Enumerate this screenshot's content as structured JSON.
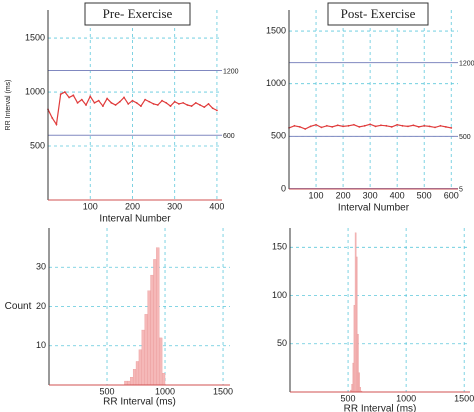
{
  "chart_data": [
    {
      "type": "line",
      "title": "Pre- Exercise",
      "x_label": "Interval Number",
      "y_label": "RR Interval (ms)",
      "x": [
        0,
        10,
        20,
        30,
        40,
        50,
        60,
        70,
        80,
        90,
        100,
        110,
        120,
        130,
        140,
        150,
        160,
        170,
        180,
        190,
        200,
        210,
        220,
        230,
        240,
        250,
        260,
        270,
        280,
        290,
        300,
        310,
        320,
        330,
        340,
        350,
        360,
        370,
        380,
        390,
        400
      ],
      "values": [
        840,
        760,
        700,
        980,
        1000,
        950,
        970,
        900,
        930,
        880,
        960,
        900,
        920,
        870,
        940,
        900,
        880,
        910,
        950,
        890,
        920,
        900,
        870,
        930,
        910,
        890,
        880,
        920,
        900,
        870,
        910,
        890,
        900,
        880,
        870,
        900,
        880,
        860,
        890,
        850,
        830
      ],
      "color": "#e03c3c",
      "xlim": [
        0,
        412
      ],
      "ylim": [
        0,
        1760
      ],
      "xticks": [
        100,
        200,
        300,
        400
      ],
      "yticks": [
        500,
        1000,
        1500
      ],
      "reference_lines": [
        {
          "value": 1200,
          "label": "1200"
        },
        {
          "value": 600,
          "label": "600"
        }
      ],
      "grid": true
    },
    {
      "type": "line",
      "title": "Post- Exercise",
      "x_label": "Interval Number",
      "x": [
        0,
        20,
        40,
        60,
        80,
        100,
        120,
        140,
        160,
        180,
        200,
        220,
        240,
        260,
        280,
        300,
        320,
        340,
        360,
        380,
        400,
        420,
        440,
        460,
        480,
        500,
        520,
        540,
        560,
        580,
        600
      ],
      "values": [
        580,
        600,
        590,
        570,
        595,
        610,
        585,
        600,
        590,
        605,
        595,
        600,
        610,
        590,
        600,
        615,
        595,
        605,
        600,
        590,
        610,
        600,
        595,
        605,
        590,
        600,
        595,
        585,
        600,
        590,
        580
      ],
      "color": "#e03c3c",
      "xlim": [
        0,
        625
      ],
      "ylim": [
        0,
        1700
      ],
      "xticks": [
        100,
        200,
        300,
        400,
        500,
        600
      ],
      "yticks": [
        0,
        500,
        1000,
        1500
      ],
      "reference_lines": [
        {
          "value": 1200,
          "label": "1200"
        },
        {
          "value": 500,
          "label": "500"
        },
        {
          "value": 5,
          "label": "5"
        }
      ],
      "grid": true
    },
    {
      "type": "histogram",
      "x_label": "RR Interval (ms)",
      "y_label": "Count",
      "bins": [
        650,
        675,
        700,
        725,
        750,
        775,
        800,
        825,
        850,
        875,
        900,
        925,
        950,
        975,
        1000
      ],
      "values": [
        1,
        1,
        2,
        4,
        6,
        9,
        14,
        18,
        24,
        28,
        32,
        35,
        12,
        3
      ],
      "color": "#f5b8b8",
      "xlim": [
        0,
        1560
      ],
      "ylim": [
        0,
        40
      ],
      "xticks": [
        500,
        1000,
        1500
      ],
      "yticks": [
        10,
        20,
        30
      ],
      "grid": true
    },
    {
      "type": "histogram",
      "x_label": "RR Interval (ms)",
      "bins": [
        520,
        530,
        540,
        550,
        560,
        570,
        580,
        590,
        600,
        610,
        620
      ],
      "values": [
        2,
        8,
        30,
        90,
        165,
        140,
        60,
        20,
        5,
        1
      ],
      "color": "#f5b8b8",
      "xlim": [
        0,
        1550
      ],
      "ylim": [
        0,
        170
      ],
      "xticks": [
        500,
        1000,
        1500
      ],
      "yticks": [
        50,
        100,
        150
      ],
      "grid": true
    }
  ]
}
